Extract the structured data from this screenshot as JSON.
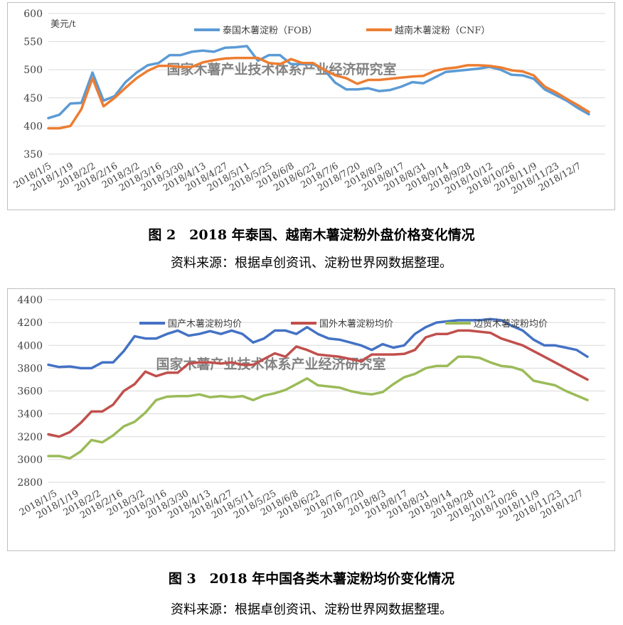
{
  "captions": {
    "fig2_title": "图 2　2018 年泰国、越南木薯淀粉外盘价格变化情况",
    "fig2_source": "资料来源：根据卓创资讯、淀粉世界网数据整理。",
    "fig3_title": "图 3　2018 年中国各类木薯淀粉均价变化情况",
    "fig3_source": "资料来源：根据卓创资讯、淀粉世界网数据整理。"
  },
  "chart_data": [
    {
      "type": "line",
      "ylabel": "美元/t",
      "ylim": [
        350,
        600
      ],
      "yticks": [
        350,
        400,
        450,
        500,
        550,
        600
      ],
      "watermark": "国家木薯产业技术体系产业经济研究室",
      "legend_position": "top-center",
      "grid": true,
      "x_tick_labels": [
        "2018/1/5",
        "2018/1/19",
        "2018/2/2",
        "2018/2/16",
        "2018/3/2",
        "2018/3/16",
        "2018/3/30",
        "2018/4/13",
        "2018/4/27",
        "2018/5/11",
        "2018/5/25",
        "2018/6/8",
        "2018/6/22",
        "2018/7/6",
        "2018/7/20",
        "2018/8/3",
        "2018/8/17",
        "2018/8/31",
        "2018/9/14",
        "2018/9/28",
        "2018/10/12",
        "2018/10/26",
        "2018/11/9",
        "2018/11/23",
        "2018/12/7"
      ],
      "series": [
        {
          "name": "泰国木薯淀粉（FOB）",
          "color": "#5b9bd5",
          "values": [
            414,
            420,
            440,
            441,
            495,
            445,
            453,
            478,
            495,
            508,
            512,
            526,
            526,
            532,
            534,
            532,
            539,
            540,
            542,
            516,
            526,
            526,
            510,
            510,
            510,
            500,
            477,
            465,
            465,
            467,
            462,
            464,
            470,
            478,
            476,
            486,
            496,
            498,
            500,
            502,
            505,
            500,
            491,
            490,
            484,
            465,
            455,
            445,
            432,
            421
          ]
        },
        {
          "name": "越南木薯淀粉（CNF）",
          "color": "#ed7d31",
          "values": [
            396,
            396,
            400,
            430,
            485,
            435,
            450,
            468,
            485,
            498,
            507,
            507,
            505,
            505,
            513,
            517,
            520,
            521,
            521,
            521,
            512,
            510,
            519,
            512,
            512,
            500,
            490,
            485,
            475,
            482,
            482,
            484,
            486,
            488,
            489,
            498,
            502,
            504,
            508,
            508,
            507,
            504,
            499,
            497,
            490,
            470,
            460,
            448,
            437,
            425
          ]
        }
      ]
    },
    {
      "type": "line",
      "ylim": [
        2800,
        4400
      ],
      "yticks": [
        2800,
        3000,
        3200,
        3400,
        3600,
        3800,
        4000,
        4200,
        4400
      ],
      "watermark": "国家木薯产业技术体系产业经济研究室",
      "legend_position": "top-center",
      "grid": true,
      "x_tick_labels": [
        "2018/1/5",
        "2018/1/19",
        "2018/2/2",
        "2018/2/16",
        "2018/3/2",
        "2018/3/16",
        "2018/3/30",
        "2018/4/13",
        "2018/4/27",
        "2018/5/11",
        "2018/5/25",
        "2018/6/8",
        "2018/6/22",
        "2018/7/6",
        "2018/7/20",
        "2018/8/3",
        "2018/8/17",
        "2018/8/31",
        "2018/9/14",
        "2018/9/28",
        "2018/10/12",
        "2018/10/26",
        "2018/11/9",
        "2018/11/23",
        "2018/12/7"
      ],
      "series": [
        {
          "name": "国产木薯淀粉均价",
          "color": "#4472c4",
          "values": [
            3830,
            3810,
            3815,
            3800,
            3800,
            3850,
            3850,
            3950,
            4080,
            4060,
            4060,
            4100,
            4130,
            4085,
            4100,
            4125,
            4100,
            4130,
            4100,
            4025,
            4060,
            4130,
            4130,
            4100,
            4160,
            4100,
            4060,
            4050,
            4025,
            4000,
            3960,
            4010,
            3980,
            4000,
            4100,
            4160,
            4200,
            4210,
            4220,
            4220,
            4220,
            4230,
            4220,
            4170,
            4130,
            4050,
            4000,
            4000,
            3980,
            3960,
            3900
          ]
        },
        {
          "name": "国外木薯淀粉均价",
          "color": "#c0504d",
          "values": [
            3220,
            3200,
            3240,
            3320,
            3420,
            3420,
            3480,
            3600,
            3660,
            3770,
            3730,
            3760,
            3760,
            3840,
            3850,
            3850,
            3840,
            3850,
            3830,
            3830,
            3880,
            3930,
            3900,
            3990,
            3960,
            3920,
            3910,
            3900,
            3880,
            3860,
            3920,
            3920,
            3920,
            3925,
            3960,
            4070,
            4100,
            4100,
            4130,
            4130,
            4120,
            4110,
            4060,
            4030,
            4000,
            3950,
            3900,
            3850,
            3800,
            3750,
            3700
          ]
        },
        {
          "name": "边贸木薯淀粉均价",
          "color": "#9bbb59",
          "values": [
            3030,
            3030,
            3010,
            3070,
            3170,
            3150,
            3210,
            3290,
            3330,
            3410,
            3520,
            3550,
            3555,
            3555,
            3570,
            3545,
            3555,
            3545,
            3555,
            3520,
            3560,
            3580,
            3610,
            3660,
            3710,
            3650,
            3640,
            3630,
            3600,
            3580,
            3570,
            3590,
            3660,
            3720,
            3750,
            3800,
            3820,
            3820,
            3900,
            3900,
            3890,
            3850,
            3820,
            3810,
            3780,
            3690,
            3670,
            3650,
            3600,
            3560,
            3520
          ]
        }
      ]
    }
  ]
}
